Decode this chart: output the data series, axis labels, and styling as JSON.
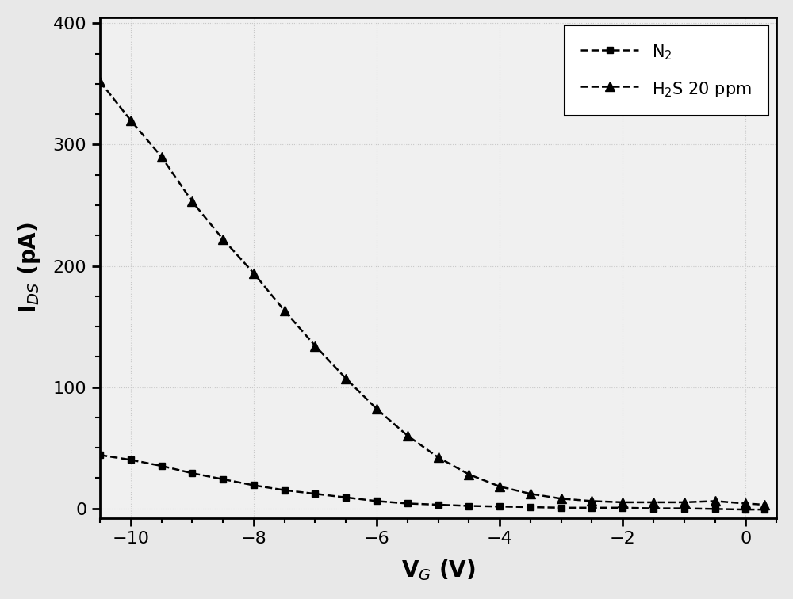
{
  "title": "",
  "xlabel": "V$_G$ (V)",
  "ylabel": "I$_{DS}$ (pA)",
  "xlim": [
    -10.5,
    0.5
  ],
  "ylim": [
    -8,
    405
  ],
  "xticks": [
    -10,
    -8,
    -6,
    -4,
    -2,
    0
  ],
  "yticks": [
    0,
    100,
    200,
    300,
    400
  ],
  "background_color": "#e8e8e8",
  "plot_bg_color": "#f0f0f0",
  "grid_color": "#c8c8c8",
  "line_color": "#000000",
  "n2_x": [
    -10.5,
    -10.0,
    -9.5,
    -9.0,
    -8.5,
    -8.0,
    -7.5,
    -7.0,
    -6.5,
    -6.0,
    -5.5,
    -5.0,
    -4.5,
    -4.0,
    -3.5,
    -3.0,
    -2.5,
    -2.0,
    -1.5,
    -1.0,
    -0.5,
    0.0,
    0.3
  ],
  "n2_y": [
    44,
    40,
    35,
    29,
    24,
    19,
    15,
    12,
    9,
    6,
    4,
    3,
    2,
    1.5,
    1,
    0.5,
    0.5,
    0.5,
    0,
    0,
    -0.5,
    -1,
    -1
  ],
  "h2s_x": [
    -10.5,
    -10.0,
    -9.5,
    -9.0,
    -8.5,
    -8.0,
    -7.5,
    -7.0,
    -6.5,
    -6.0,
    -5.5,
    -5.0,
    -4.5,
    -4.0,
    -3.5,
    -3.0,
    -2.5,
    -2.0,
    -1.5,
    -1.0,
    -0.5,
    0.0,
    0.3
  ],
  "h2s_y": [
    352,
    320,
    290,
    253,
    222,
    194,
    163,
    134,
    107,
    82,
    60,
    42,
    28,
    18,
    12,
    8,
    6,
    5,
    5,
    5,
    6,
    4,
    3
  ],
  "legend_n2": "N$_2$",
  "legend_h2s": "H$_2$S 20 ppm",
  "figsize": [
    10.0,
    7.56
  ],
  "dpi": 100
}
